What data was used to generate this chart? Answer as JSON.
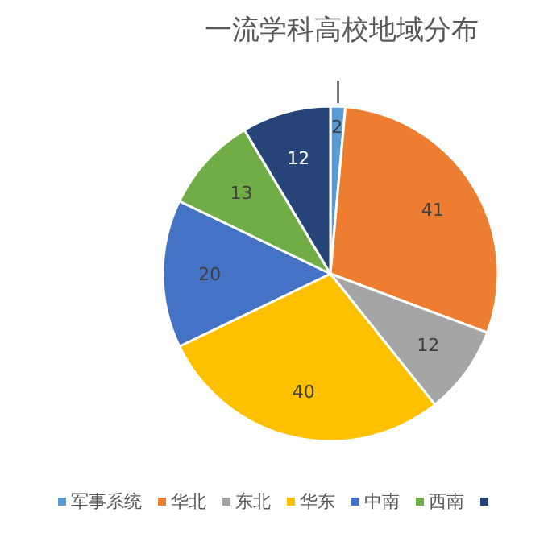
{
  "chart_data": {
    "type": "pie",
    "title": "一流学科高校地域分布",
    "categories": [
      "军事系统",
      "华北",
      "东北",
      "华东",
      "中南",
      "西南",
      null
    ],
    "values": [
      2,
      41,
      12,
      40,
      20,
      13,
      12
    ],
    "colors": [
      "#5b9bd5",
      "#ed7d31",
      "#a5a5a5",
      "#ffc000",
      "#4472c4",
      "#70ad47",
      "#264478"
    ],
    "data_labels": true,
    "legend": "bottom"
  }
}
